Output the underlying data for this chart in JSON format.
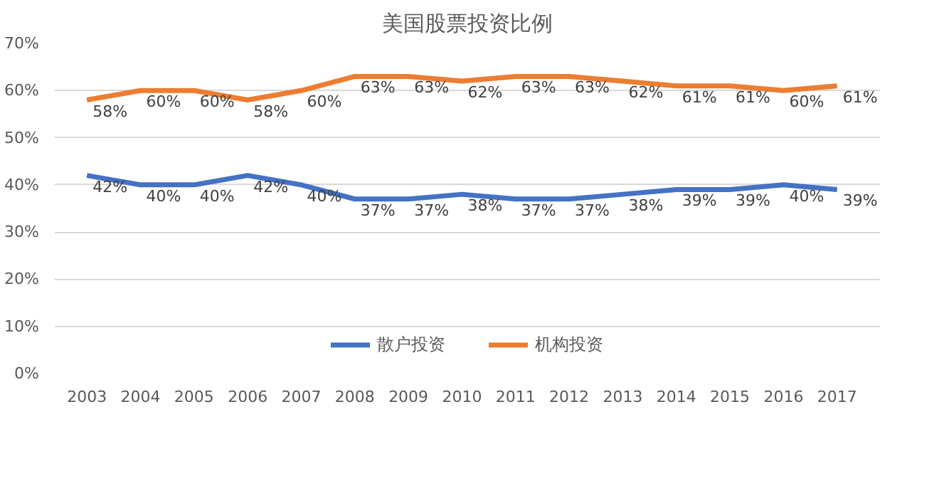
{
  "chart_data": {
    "type": "line",
    "title": "美国股票投资比例",
    "categories": [
      "2003",
      "2004",
      "2005",
      "2006",
      "2007",
      "2008",
      "2009",
      "2010",
      "2011",
      "2012",
      "2013",
      "2014",
      "2015",
      "2016",
      "2017"
    ],
    "series": [
      {
        "name": "散户投资",
        "color": "#4472c4",
        "values": [
          42,
          40,
          40,
          42,
          40,
          37,
          37,
          38,
          37,
          37,
          38,
          39,
          39,
          40,
          39
        ],
        "value_labels": [
          "42%",
          "40%",
          "40%",
          "42%",
          "40%",
          "37%",
          "37%",
          "38%",
          "37%",
          "37%",
          "38%",
          "39%",
          "39%",
          "40%",
          "39%"
        ]
      },
      {
        "name": "机构投资",
        "color": "#ed7d31",
        "values": [
          58,
          60,
          60,
          58,
          60,
          63,
          63,
          62,
          63,
          63,
          62,
          61,
          61,
          60,
          61
        ],
        "value_labels": [
          "58%",
          "60%",
          "60%",
          "58%",
          "60%",
          "63%",
          "63%",
          "62%",
          "63%",
          "63%",
          "62%",
          "61%",
          "61%",
          "60%",
          "61%"
        ]
      }
    ],
    "ylim": [
      0,
      70
    ],
    "yticks": [
      {
        "value": 0,
        "label": "0%"
      },
      {
        "value": 10,
        "label": "10%"
      },
      {
        "value": 20,
        "label": "20%"
      },
      {
        "value": 30,
        "label": "30%"
      },
      {
        "value": 40,
        "label": "40%"
      },
      {
        "value": 50,
        "label": "50%"
      },
      {
        "value": 60,
        "label": "60%"
      },
      {
        "value": 70,
        "label": "70%"
      }
    ],
    "grid": "y",
    "legend": "bottom",
    "marker": "none",
    "line_style": "solid"
  }
}
